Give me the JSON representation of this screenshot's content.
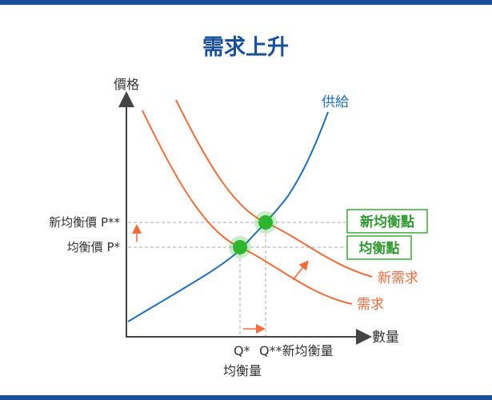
{
  "title": "需求上升",
  "axes": {
    "y_label": "價格",
    "x_label": "數量"
  },
  "curves": {
    "supply": "供給",
    "demand": "需求",
    "new_demand": "新需求"
  },
  "price_labels": {
    "new_equilibrium_price": "新均衡價 P**",
    "equilibrium_price": "均衡價 P*"
  },
  "quantity_labels": {
    "q_star": "Q*",
    "q_star_star": "Q**新均衡量",
    "equilibrium_quantity": "均衡量"
  },
  "boxes": {
    "new_equilibrium_point": "新均衡點",
    "equilibrium_point": "均衡點"
  },
  "colors": {
    "supply": "#1f6fb8",
    "demand": "#f26b3a",
    "point": "#2db52d",
    "box_border": "#3aaa35",
    "box_text": "#2f9a2f",
    "bar": "#1a4f9a"
  }
}
